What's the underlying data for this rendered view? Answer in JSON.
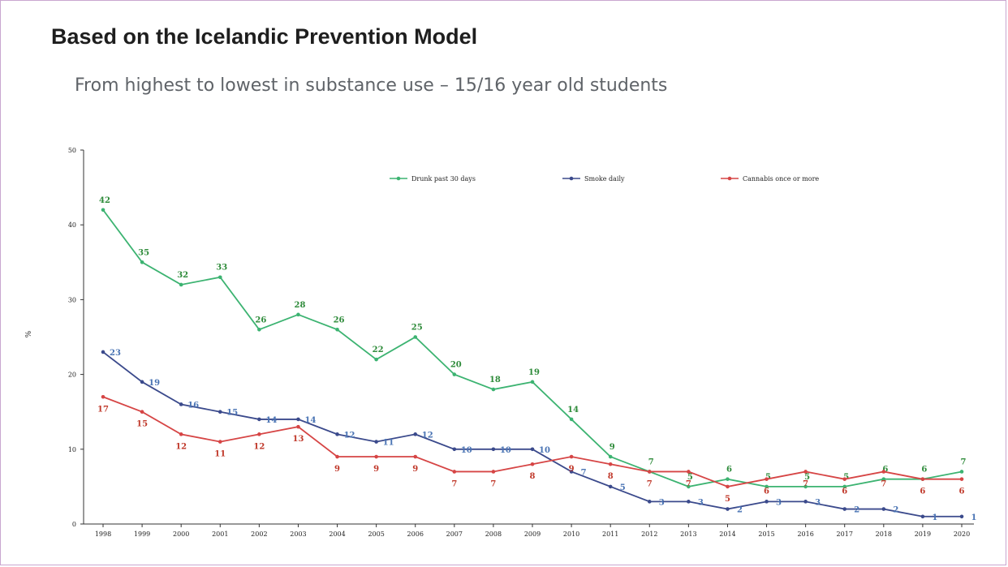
{
  "slide": {
    "title": "Based on the Icelandic Prevention Model",
    "subtitle": "From highest to lowest in substance use – 15/16 year old students"
  },
  "chart_data": {
    "type": "line",
    "ylabel": "%",
    "ylim": [
      0,
      50
    ],
    "yticks": [
      "0",
      "10",
      "20",
      "30",
      "40",
      "50"
    ],
    "categories": [
      "1998",
      "1999",
      "2000",
      "2001",
      "2002",
      "2003",
      "2004",
      "2005",
      "2006",
      "2007",
      "2008",
      "2009",
      "2010",
      "2011",
      "2012",
      "2013",
      "2014",
      "2015",
      "2016",
      "2017",
      "2018",
      "2019",
      "2020"
    ],
    "legend_position": "top",
    "grid": false,
    "series": [
      {
        "name": "Drunk past 30 days",
        "color": "#3cb371",
        "label_color": "#2e8b3a",
        "values": [
          42,
          35,
          32,
          33,
          26,
          28,
          26,
          22,
          25,
          20,
          18,
          19,
          14,
          9,
          7,
          5,
          6,
          5,
          5,
          5,
          6,
          6,
          7
        ],
        "labels": [
          "42",
          "35",
          "32",
          "33",
          "26",
          "28",
          "26",
          "22",
          "25",
          "20",
          "18",
          "19",
          "14",
          "9",
          "7",
          "5",
          "6",
          "5",
          "5",
          "5",
          "6",
          "6",
          "7"
        ]
      },
      {
        "name": "Smoke daily",
        "color": "#3b4a8c",
        "label_color": "#4a74b4",
        "values": [
          23,
          19,
          16,
          15,
          14,
          14,
          12,
          11,
          12,
          10,
          10,
          10,
          7,
          5,
          3,
          3,
          2,
          3,
          3,
          2,
          2,
          1,
          1
        ],
        "labels": [
          "23",
          "19",
          "16",
          "15",
          "14",
          "14",
          "12",
          "11",
          "12",
          "10",
          "10",
          "10",
          "7",
          "5",
          "3",
          "3",
          "2",
          "3",
          "3",
          "2",
          "2",
          "1",
          "1"
        ]
      },
      {
        "name": "Cannabis once or more",
        "color": "#d64545",
        "label_color": "#c0392b",
        "values": [
          17,
          15,
          12,
          11,
          12,
          13,
          9,
          9,
          9,
          7,
          7,
          8,
          9,
          8,
          7,
          7,
          5,
          6,
          7,
          6,
          7,
          6,
          6
        ],
        "labels": [
          "17",
          "15",
          "12",
          "11",
          "12",
          "13",
          "9",
          "9",
          "9",
          "7",
          "7",
          "8",
          "9",
          "8",
          "7",
          "7",
          "5",
          "6",
          "7",
          "6",
          "7",
          "6",
          "6"
        ]
      }
    ]
  }
}
